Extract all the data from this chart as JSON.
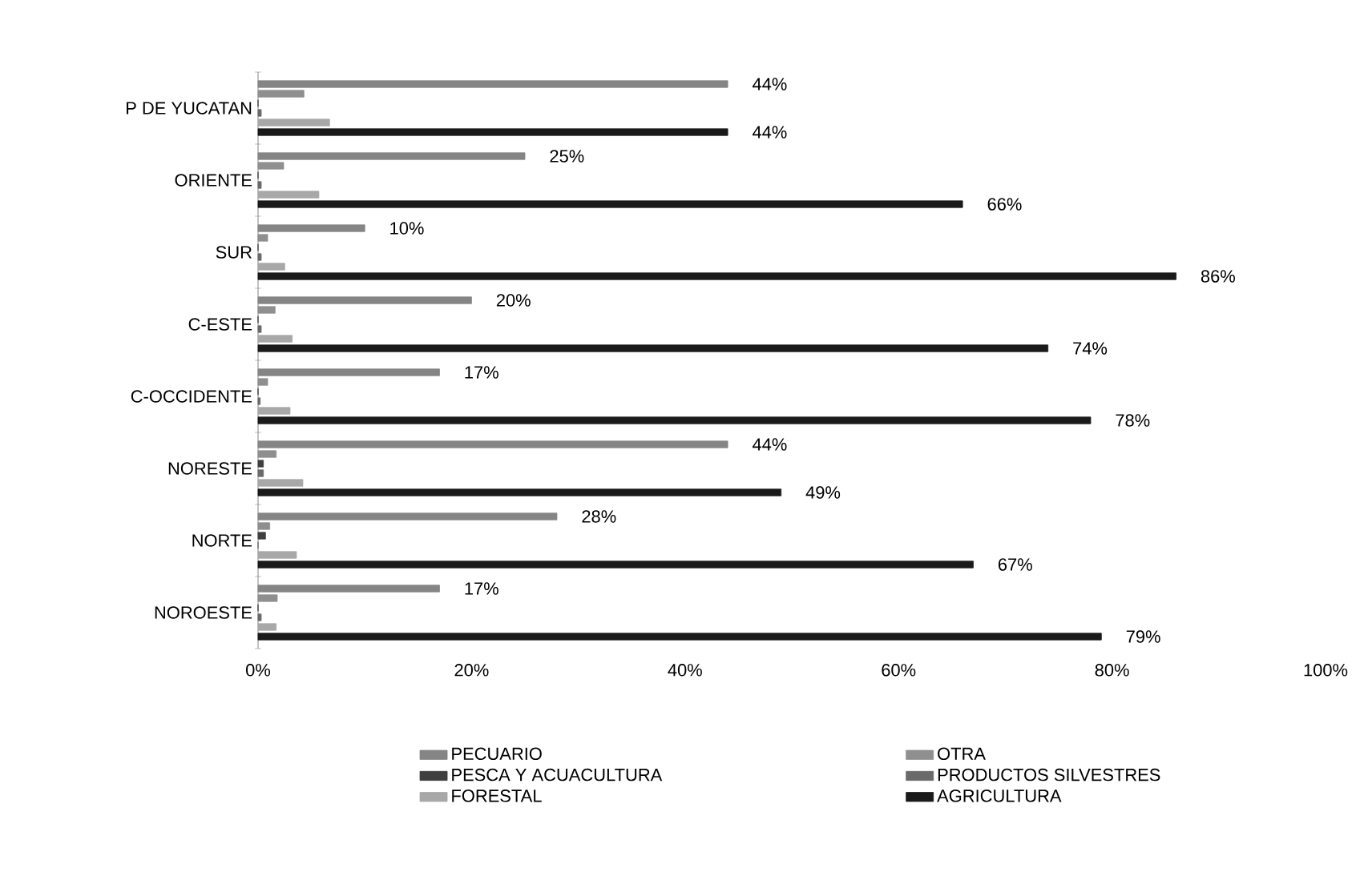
{
  "chart_data": {
    "type": "bar",
    "orientation": "horizontal",
    "categories": [
      "P DE YUCATAN",
      "ORIENTE",
      "SUR",
      "C-ESTE",
      "C-OCCIDENTE",
      "NORESTE",
      "NORTE",
      "NOROESTE"
    ],
    "series": [
      {
        "name": "PECUARIO",
        "color": "#858585",
        "values": [
          44,
          25,
          10,
          20,
          17,
          44,
          28,
          17
        ],
        "value_labels": [
          "44%",
          "25%",
          "10%",
          "20%",
          "17%",
          "44%",
          "28%",
          "17%"
        ]
      },
      {
        "name": "OTRA",
        "color": "#8f8f8f",
        "values": [
          4.3,
          2.4,
          0.9,
          1.6,
          0.9,
          1.7,
          1.1,
          1.8
        ]
      },
      {
        "name": "PESCA Y ACUACULTURA",
        "color": "#3f3f3f",
        "values": [
          0,
          0,
          0,
          0,
          0,
          0.5,
          0.7,
          0
        ]
      },
      {
        "name": "PRODUCTOS SILVESTRES",
        "color": "#6a6a6a",
        "values": [
          0.3,
          0.3,
          0.3,
          0.3,
          0.2,
          0.5,
          0,
          0.3
        ]
      },
      {
        "name": "FORESTAL",
        "color": "#a8a8a8",
        "values": [
          6.7,
          5.7,
          2.5,
          3.2,
          3,
          4.2,
          3.6,
          1.7
        ]
      },
      {
        "name": "AGRICULTURA",
        "color": "#1a1a1a",
        "values": [
          44,
          66,
          86,
          74,
          78,
          49,
          67,
          79
        ],
        "value_labels": [
          "44%",
          "66%",
          "86%",
          "74%",
          "78%",
          "49%",
          "67%",
          "79%"
        ]
      }
    ],
    "xlim": [
      0,
      100
    ],
    "xticks": [
      {
        "value": 0,
        "label": "0%"
      },
      {
        "value": 20,
        "label": "20%"
      },
      {
        "value": 40,
        "label": "40%"
      },
      {
        "value": 60,
        "label": "60%"
      },
      {
        "value": 80,
        "label": "80%"
      },
      {
        "value": 100,
        "label": "100%"
      }
    ],
    "grid": false,
    "legend": "bottom"
  }
}
